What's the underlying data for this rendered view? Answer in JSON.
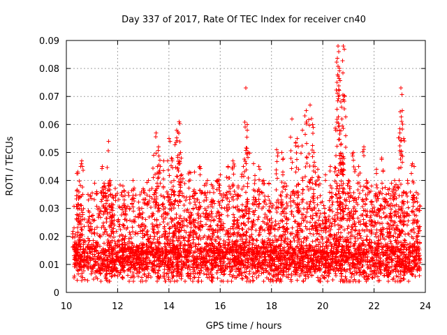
{
  "chart_data": {
    "type": "scatter",
    "title": "Day 337 of 2017, Rate Of TEC Index for receiver cn40",
    "xlabel": "GPS time / hours",
    "ylabel": "ROTI / TECUs",
    "xlim": [
      10,
      24
    ],
    "ylim": [
      0,
      0.09
    ],
    "x_ticks": [
      10,
      12,
      14,
      16,
      18,
      20,
      22,
      24
    ],
    "x_tick_labels": [
      "10",
      "12",
      "14",
      "16",
      "18",
      "20",
      "22",
      "24"
    ],
    "y_ticks": [
      0,
      0.01,
      0.02,
      0.03,
      0.04,
      0.05,
      0.06,
      0.07,
      0.08,
      0.09
    ],
    "y_tick_labels": [
      "0",
      "0.01",
      "0.02",
      "0.03",
      "0.04",
      "0.05",
      "0.06",
      "0.07",
      "0.08",
      "0.09"
    ],
    "grid": true,
    "legend": "none",
    "marker": "plus",
    "series_color": "#ff0000",
    "x_range_data": [
      10.3,
      23.8
    ],
    "series": [
      {
        "x": [
          10.3,
          10.45,
          10.5,
          10.6,
          10.9,
          11.4,
          11.5,
          11.65,
          11.7,
          11.8,
          12.2,
          12.3,
          12.6,
          13.0,
          13.2,
          13.4,
          13.5,
          13.55,
          13.6,
          13.8,
          14.0,
          14.1,
          14.2,
          14.3,
          14.4,
          14.45,
          14.5,
          14.8,
          15.0,
          15.2,
          15.5,
          15.7,
          15.9,
          16.0,
          16.3,
          16.5,
          16.7,
          16.9,
          17.0,
          17.05,
          17.1,
          17.3,
          17.5,
          17.7,
          17.9,
          18.2,
          18.4,
          18.45,
          18.6,
          18.8,
          19.0,
          19.05,
          19.2,
          19.35,
          19.5,
          19.6,
          19.65,
          19.8,
          20.1,
          20.3,
          20.5,
          20.55,
          20.6,
          20.62,
          20.65,
          20.7,
          20.75,
          20.8,
          20.85,
          21.0,
          21.2,
          21.4,
          21.6,
          21.7,
          21.9,
          22.1,
          22.3,
          22.6,
          22.8,
          23.0,
          23.05,
          23.1,
          23.15,
          23.3,
          23.5,
          23.7
        ],
        "y": [
          0.023,
          0.043,
          0.03,
          0.047,
          0.025,
          0.045,
          0.038,
          0.054,
          0.04,
          0.034,
          0.038,
          0.029,
          0.04,
          0.037,
          0.04,
          0.049,
          0.057,
          0.045,
          0.052,
          0.047,
          0.055,
          0.048,
          0.04,
          0.058,
          0.061,
          0.05,
          0.042,
          0.043,
          0.043,
          0.045,
          0.04,
          0.038,
          0.04,
          0.042,
          0.045,
          0.047,
          0.038,
          0.045,
          0.073,
          0.06,
          0.05,
          0.046,
          0.045,
          0.04,
          0.039,
          0.051,
          0.05,
          0.043,
          0.038,
          0.062,
          0.055,
          0.044,
          0.058,
          0.065,
          0.067,
          0.06,
          0.05,
          0.044,
          0.042,
          0.045,
          0.058,
          0.075,
          0.088,
          0.086,
          0.08,
          0.068,
          0.062,
          0.088,
          0.07,
          0.04,
          0.05,
          0.045,
          0.052,
          0.04,
          0.038,
          0.044,
          0.048,
          0.037,
          0.04,
          0.057,
          0.073,
          0.065,
          0.055,
          0.04,
          0.046,
          0.03
        ]
      }
    ]
  }
}
